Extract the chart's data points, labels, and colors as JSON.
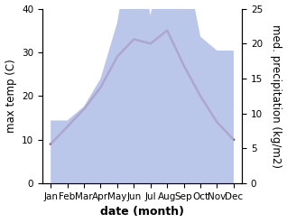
{
  "months": [
    "Jan",
    "Feb",
    "Mar",
    "Apr",
    "May",
    "Jun",
    "Jul",
    "Aug",
    "Sep",
    "Oct",
    "Nov",
    "Dec"
  ],
  "month_positions": [
    1,
    2,
    3,
    4,
    5,
    6,
    7,
    8,
    9,
    10,
    11,
    12
  ],
  "temp": [
    9,
    13,
    17,
    22,
    29,
    33,
    32,
    35,
    27,
    20,
    14,
    10
  ],
  "precip": [
    9,
    9,
    11,
    15,
    23,
    37,
    24,
    39,
    33,
    21,
    19,
    19
  ],
  "temp_color": "#993344",
  "precip_fill_color": "#b0bce8",
  "precip_fill_alpha": 0.85,
  "title": "",
  "xlabel": "date (month)",
  "ylabel_left": "max temp (C)",
  "ylabel_right": "med. precipitation (kg/m2)",
  "ylim_left": [
    0,
    40
  ],
  "ylim_right": [
    0,
    25
  ],
  "yticks_left": [
    0,
    10,
    20,
    30,
    40
  ],
  "yticks_right": [
    0,
    5,
    10,
    15,
    20,
    25
  ],
  "bg_color": "#ffffff",
  "temp_linewidth": 1.8,
  "xlabel_fontsize": 9,
  "xlabel_fontweight": "bold",
  "ylabel_fontsize": 8.5,
  "tick_fontsize": 7.5
}
